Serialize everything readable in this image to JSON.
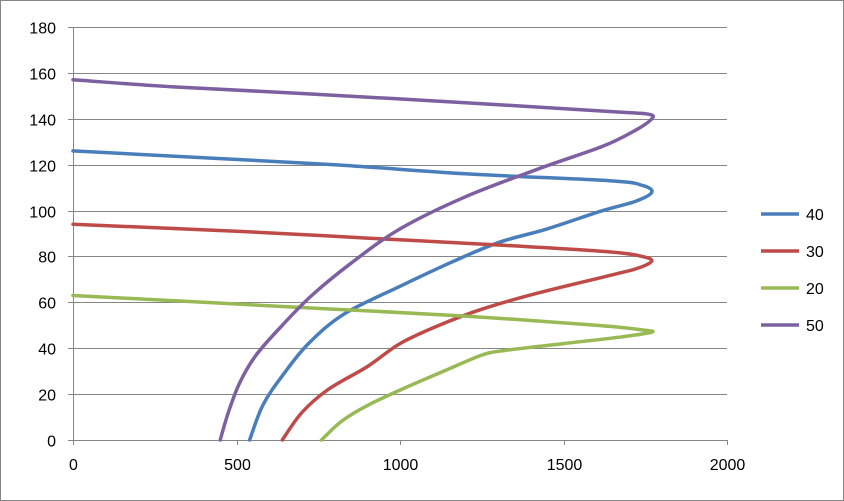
{
  "chart_data": {
    "type": "line",
    "title": "",
    "xlabel": "",
    "ylabel": "",
    "xlim": [
      0,
      2000
    ],
    "ylim": [
      0,
      180
    ],
    "x_ticks": [
      0,
      500,
      1000,
      1500,
      2000
    ],
    "y_ticks": [
      0,
      20,
      40,
      60,
      80,
      100,
      120,
      140,
      160,
      180
    ],
    "x_tick_labels": [
      "0",
      "500",
      "1000",
      "1500",
      "2000"
    ],
    "y_tick_labels": [
      "0",
      "20",
      "40",
      "60",
      "80",
      "100",
      "120",
      "140",
      "160",
      "180"
    ],
    "grid": "horizontal",
    "legend_position": "right",
    "series": [
      {
        "name": "40",
        "color": "#4A7EBB",
        "points": [
          [
            540,
            0
          ],
          [
            580,
            15
          ],
          [
            640,
            28
          ],
          [
            720,
            42
          ],
          [
            830,
            55
          ],
          [
            1000,
            67
          ],
          [
            1150,
            77
          ],
          [
            1300,
            86
          ],
          [
            1450,
            92
          ],
          [
            1620,
            100
          ],
          [
            1720,
            104
          ],
          [
            1770,
            108
          ],
          [
            1740,
            111
          ],
          [
            1640,
            113
          ],
          [
            1200,
            116
          ],
          [
            800,
            120
          ],
          [
            400,
            123
          ],
          [
            0,
            126
          ]
        ]
      },
      {
        "name": "30",
        "color": "#BE4B48",
        "points": [
          [
            640,
            0
          ],
          [
            700,
            12
          ],
          [
            780,
            22
          ],
          [
            900,
            32
          ],
          [
            1000,
            42
          ],
          [
            1120,
            50
          ],
          [
            1250,
            57
          ],
          [
            1420,
            64
          ],
          [
            1650,
            72
          ],
          [
            1730,
            75
          ],
          [
            1770,
            78
          ],
          [
            1740,
            80
          ],
          [
            1640,
            82
          ],
          [
            1300,
            85
          ],
          [
            900,
            88
          ],
          [
            500,
            91
          ],
          [
            0,
            94
          ]
        ]
      },
      {
        "name": "20",
        "color": "#98B954",
        "points": [
          [
            760,
            0
          ],
          [
            820,
            8
          ],
          [
            900,
            15
          ],
          [
            1020,
            23
          ],
          [
            1150,
            31
          ],
          [
            1250,
            37
          ],
          [
            1320,
            39
          ],
          [
            1500,
            42
          ],
          [
            1680,
            45
          ],
          [
            1770,
            47
          ],
          [
            1740,
            48
          ],
          [
            1600,
            50
          ],
          [
            1200,
            54
          ],
          [
            800,
            57
          ],
          [
            400,
            60
          ],
          [
            0,
            63
          ]
        ]
      },
      {
        "name": "50",
        "color": "#7D60A0",
        "points": [
          [
            450,
            0
          ],
          [
            475,
            12
          ],
          [
            510,
            25
          ],
          [
            560,
            37
          ],
          [
            640,
            50
          ],
          [
            730,
            63
          ],
          [
            850,
            77
          ],
          [
            1000,
            92
          ],
          [
            1200,
            106
          ],
          [
            1420,
            118
          ],
          [
            1620,
            128
          ],
          [
            1720,
            135
          ],
          [
            1770,
            140
          ],
          [
            1760,
            142
          ],
          [
            1660,
            143
          ],
          [
            1200,
            147
          ],
          [
            700,
            151
          ],
          [
            300,
            154
          ],
          [
            0,
            157
          ]
        ]
      }
    ],
    "legend_order": [
      "40",
      "30",
      "20",
      "50"
    ]
  }
}
